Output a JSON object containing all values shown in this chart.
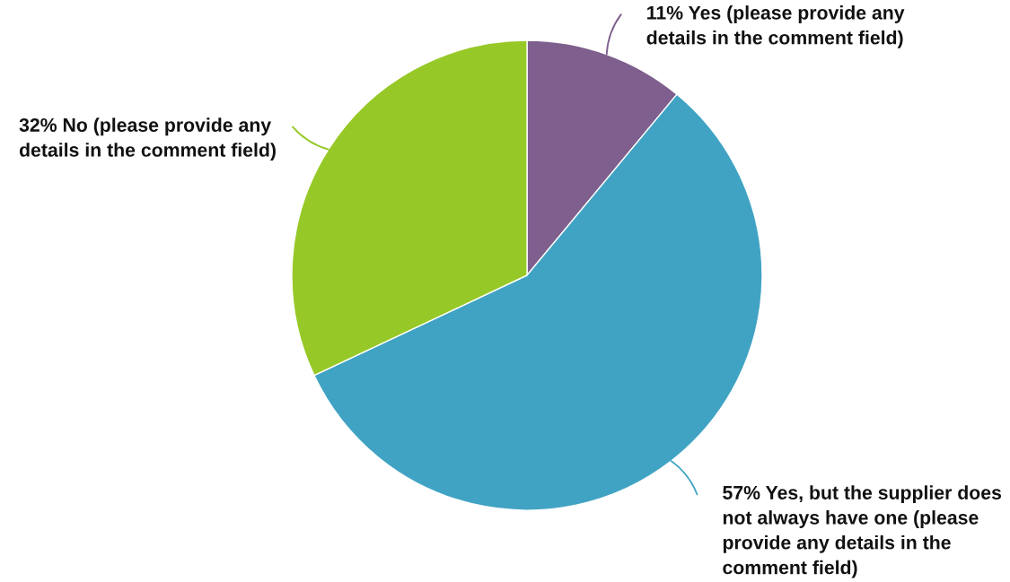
{
  "chart_data": {
    "type": "pie",
    "categories": [
      "Yes (please provide any details in the comment field)",
      "Yes, but the supplier does not always have one (please provide any details in the comment field)",
      "No (please provide any details in the comment field)"
    ],
    "values": [
      11,
      57,
      32
    ],
    "value_labels": [
      "11%",
      "57%",
      "32%"
    ],
    "colors": [
      "#7e5f8d",
      "#41a3c3",
      "#96c927"
    ]
  }
}
